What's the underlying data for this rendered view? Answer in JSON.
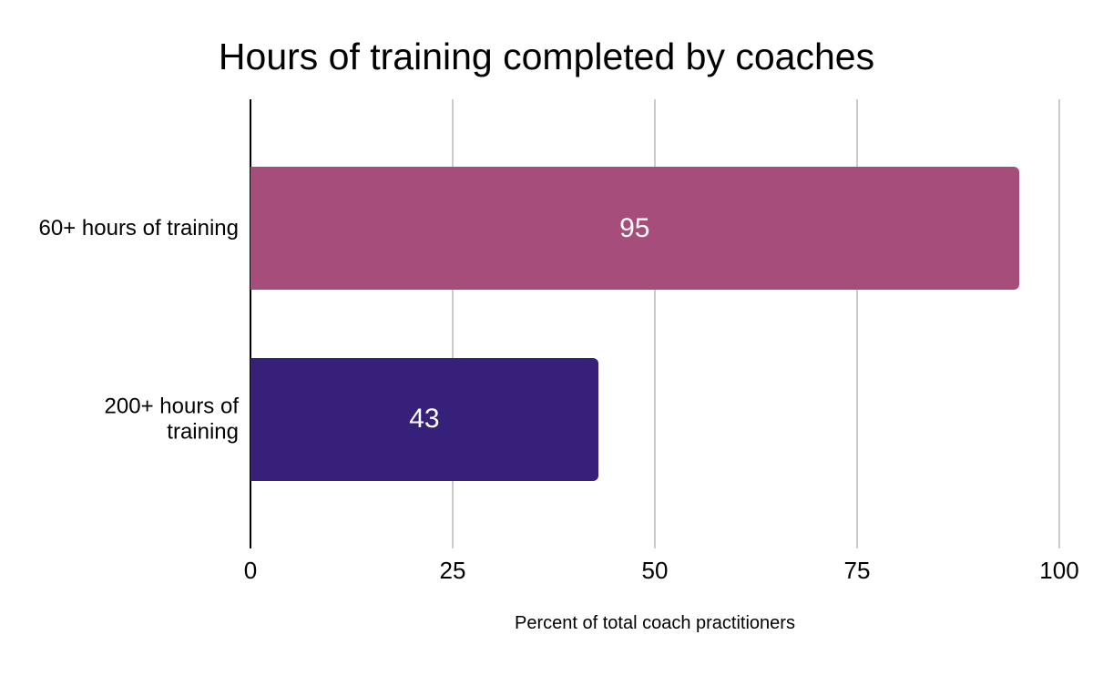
{
  "chart_data": {
    "type": "bar",
    "orientation": "horizontal",
    "title": "Hours of training completed by coaches",
    "categories": [
      "60+ hours of training",
      "200+ hours of training"
    ],
    "values": [
      95,
      43
    ],
    "bar_colors": [
      "#A64D7B",
      "#37207A"
    ],
    "value_label_color": "#ffffff",
    "xlabel": "Percent of total coach practitioners",
    "ylabel": "",
    "xlim": [
      0,
      100
    ],
    "xticks": [
      0,
      25,
      50,
      75,
      100
    ],
    "grid": true,
    "gridline_color": "#cccccc",
    "axis_line_color": "#000000",
    "background": "#ffffff",
    "legend": "none",
    "title_color": "#000000",
    "label_color": "#000000"
  }
}
